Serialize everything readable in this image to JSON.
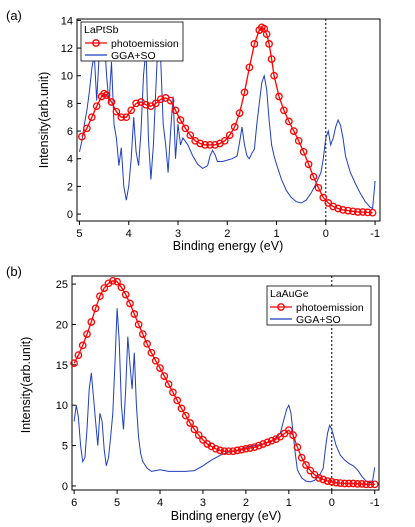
{
  "chart_data": [
    {
      "panel_label": "(a)",
      "type": "line",
      "sample": "LaPtSb",
      "xlabel": "Binding energy (eV)",
      "ylabel": "Intensity(arb.unit)",
      "xlim": [
        5.05,
        -1.1
      ],
      "ylim": [
        -0.5,
        14.1
      ],
      "xticks": [
        5,
        4,
        3,
        2,
        1,
        0,
        -1
      ],
      "yticks": [
        0,
        2,
        4,
        6,
        8,
        10,
        12,
        14
      ],
      "fermi_line_x": 0,
      "legend_location": "top-left",
      "colors": {
        "photoemission": "#ff0000",
        "gga": "#1f3fbf"
      },
      "series": [
        {
          "name": "photoemission",
          "marker": "circle",
          "x": [
            4.95,
            4.85,
            4.75,
            4.65,
            4.55,
            4.5,
            4.45,
            4.35,
            4.25,
            4.15,
            4.05,
            3.95,
            3.85,
            3.75,
            3.65,
            3.55,
            3.45,
            3.35,
            3.25,
            3.15,
            3.05,
            2.95,
            2.85,
            2.75,
            2.65,
            2.55,
            2.45,
            2.35,
            2.25,
            2.15,
            2.05,
            1.95,
            1.85,
            1.75,
            1.65,
            1.55,
            1.45,
            1.35,
            1.3,
            1.25,
            1.2,
            1.15,
            1.1,
            1.05,
            0.95,
            0.85,
            0.75,
            0.65,
            0.55,
            0.45,
            0.35,
            0.25,
            0.15,
            0.05,
            -0.05,
            -0.15,
            -0.25,
            -0.35,
            -0.45,
            -0.55,
            -0.65,
            -0.75,
            -0.85,
            -0.95
          ],
          "y": [
            5.6,
            6.2,
            7.0,
            7.8,
            8.5,
            8.7,
            8.6,
            8.1,
            7.4,
            7.0,
            7.0,
            7.5,
            8.0,
            8.1,
            7.9,
            7.8,
            8.0,
            8.3,
            8.4,
            8.2,
            7.5,
            6.8,
            6.2,
            5.7,
            5.3,
            5.1,
            5.0,
            5.0,
            5.0,
            5.1,
            5.3,
            5.7,
            6.3,
            7.3,
            8.8,
            10.6,
            12.3,
            13.3,
            13.5,
            13.4,
            13.0,
            12.3,
            11.2,
            10.0,
            8.5,
            7.5,
            6.7,
            6.0,
            5.3,
            4.5,
            3.6,
            2.7,
            1.9,
            1.2,
            0.8,
            0.55,
            0.4,
            0.3,
            0.25,
            0.2,
            0.15,
            0.15,
            0.12,
            0.1
          ]
        },
        {
          "name": "GGA+SO",
          "marker": "none",
          "x": [
            5.0,
            4.95,
            4.9,
            4.85,
            4.8,
            4.75,
            4.7,
            4.65,
            4.6,
            4.55,
            4.5,
            4.45,
            4.4,
            4.35,
            4.3,
            4.25,
            4.2,
            4.15,
            4.1,
            4.05,
            4.0,
            3.95,
            3.9,
            3.85,
            3.8,
            3.75,
            3.7,
            3.65,
            3.6,
            3.55,
            3.5,
            3.45,
            3.4,
            3.35,
            3.3,
            3.25,
            3.2,
            3.15,
            3.1,
            3.05,
            3.0,
            2.95,
            2.9,
            2.8,
            2.7,
            2.6,
            2.5,
            2.4,
            2.35,
            2.3,
            2.25,
            2.2,
            2.1,
            2.0,
            1.9,
            1.8,
            1.75,
            1.7,
            1.65,
            1.6,
            1.55,
            1.5,
            1.45,
            1.4,
            1.35,
            1.3,
            1.25,
            1.2,
            1.15,
            1.1,
            1.05,
            1.0,
            0.9,
            0.8,
            0.7,
            0.6,
            0.5,
            0.4,
            0.3,
            0.2,
            0.1,
            0.05,
            0.0,
            -0.05,
            -0.1,
            -0.15,
            -0.2,
            -0.25,
            -0.3,
            -0.35,
            -0.4,
            -0.5,
            -0.6,
            -0.7,
            -0.8,
            -0.9,
            -0.95,
            -1.0
          ],
          "y": [
            4.5,
            5.3,
            6.5,
            7.5,
            8.8,
            10.5,
            11.6,
            8.2,
            11.5,
            12.4,
            13.0,
            10.0,
            8.0,
            11.0,
            6.5,
            5.5,
            3.5,
            4.8,
            2.0,
            1.0,
            2.0,
            4.0,
            7.0,
            4.5,
            3.5,
            6.0,
            10.0,
            12.0,
            5.5,
            2.5,
            5.0,
            9.0,
            13.0,
            11.0,
            6.5,
            5.0,
            3.0,
            6.0,
            8.5,
            4.0,
            6.5,
            5.0,
            5.5,
            5.0,
            4.2,
            3.6,
            3.3,
            3.5,
            4.2,
            4.6,
            4.3,
            3.8,
            3.8,
            3.9,
            4.0,
            4.2,
            5.2,
            6.3,
            5.0,
            4.2,
            4.0,
            4.4,
            4.7,
            6.5,
            8.0,
            9.5,
            10.0,
            9.0,
            6.8,
            5.0,
            4.2,
            3.6,
            2.5,
            1.7,
            1.2,
            0.9,
            0.8,
            1.0,
            1.5,
            2.2,
            3.0,
            4.0,
            5.5,
            6.0,
            5.0,
            5.5,
            6.3,
            6.8,
            6.4,
            5.5,
            4.2,
            3.0,
            2.2,
            1.5,
            0.9,
            0.5,
            0.4,
            2.4
          ]
        }
      ]
    },
    {
      "panel_label": "(b)",
      "type": "line",
      "sample": "LaAuGe",
      "xlabel": "Binding energy (eV)",
      "ylabel": "Intensity(arb.unit)",
      "xlim": [
        6.05,
        -1.1
      ],
      "ylim": [
        -0.5,
        26
      ],
      "xticks": [
        6,
        5,
        4,
        3,
        2,
        1,
        0,
        -1
      ],
      "yticks": [
        0,
        5,
        10,
        15,
        20,
        25
      ],
      "fermi_line_x": 0,
      "legend_location": "top-right",
      "colors": {
        "photoemission": "#ff0000",
        "gga": "#1f3fbf"
      },
      "series": [
        {
          "name": "photoemission",
          "marker": "circle",
          "x": [
            6.0,
            5.9,
            5.8,
            5.7,
            5.6,
            5.5,
            5.4,
            5.3,
            5.2,
            5.1,
            5.0,
            4.9,
            4.8,
            4.7,
            4.6,
            4.5,
            4.4,
            4.3,
            4.2,
            4.1,
            4.0,
            3.9,
            3.8,
            3.7,
            3.6,
            3.5,
            3.4,
            3.3,
            3.2,
            3.1,
            3.0,
            2.9,
            2.8,
            2.7,
            2.6,
            2.5,
            2.4,
            2.3,
            2.2,
            2.1,
            2.0,
            1.9,
            1.8,
            1.7,
            1.6,
            1.5,
            1.4,
            1.3,
            1.2,
            1.1,
            1.0,
            0.9,
            0.8,
            0.7,
            0.6,
            0.5,
            0.4,
            0.3,
            0.2,
            0.1,
            0.0,
            -0.1,
            -0.2,
            -0.3,
            -0.4,
            -0.5,
            -0.6,
            -0.7,
            -0.8,
            -0.9,
            -1.0
          ],
          "y": [
            15.2,
            16.2,
            17.4,
            18.8,
            20.3,
            22.0,
            23.5,
            24.5,
            25.1,
            25.4,
            25.3,
            24.6,
            23.7,
            22.6,
            21.3,
            20.0,
            18.8,
            17.6,
            16.5,
            15.5,
            14.6,
            13.6,
            12.6,
            11.6,
            10.6,
            9.6,
            8.7,
            7.8,
            7.0,
            6.3,
            5.7,
            5.2,
            4.9,
            4.6,
            4.4,
            4.3,
            4.3,
            4.3,
            4.4,
            4.5,
            4.6,
            4.7,
            4.8,
            5.0,
            5.2,
            5.4,
            5.6,
            5.8,
            6.1,
            6.5,
            6.9,
            6.3,
            4.8,
            3.5,
            2.6,
            1.9,
            1.4,
            1.0,
            0.8,
            0.6,
            0.5,
            0.4,
            0.35,
            0.3,
            0.3,
            0.3,
            0.25,
            0.25,
            0.2,
            0.2,
            0.2
          ]
        },
        {
          "name": "GGA+SO",
          "marker": "none",
          "x": [
            6.0,
            5.95,
            5.9,
            5.85,
            5.8,
            5.75,
            5.7,
            5.65,
            5.6,
            5.55,
            5.5,
            5.45,
            5.4,
            5.35,
            5.3,
            5.25,
            5.2,
            5.15,
            5.1,
            5.05,
            5.0,
            4.95,
            4.9,
            4.85,
            4.8,
            4.75,
            4.7,
            4.65,
            4.6,
            4.55,
            4.5,
            4.45,
            4.4,
            4.3,
            4.2,
            4.1,
            4.0,
            3.8,
            3.6,
            3.4,
            3.2,
            3.0,
            2.8,
            2.6,
            2.4,
            2.2,
            2.0,
            1.8,
            1.6,
            1.4,
            1.3,
            1.2,
            1.1,
            1.05,
            1.0,
            0.95,
            0.9,
            0.85,
            0.8,
            0.7,
            0.6,
            0.5,
            0.4,
            0.3,
            0.2,
            0.15,
            0.1,
            0.05,
            0.0,
            -0.1,
            -0.2,
            -0.3,
            -0.4,
            -0.5,
            -0.6,
            -0.7,
            -0.8,
            -0.9,
            -0.95,
            -1.0
          ],
          "y": [
            8.0,
            10.0,
            8.5,
            5.0,
            3.0,
            3.5,
            7.0,
            12.0,
            14.0,
            11.0,
            8.0,
            5.0,
            9.0,
            8.0,
            4.5,
            2.5,
            3.5,
            6.0,
            9.0,
            15.0,
            22.0,
            18.0,
            10.0,
            7.0,
            12.0,
            18.5,
            15.0,
            12.0,
            16.5,
            10.0,
            6.0,
            4.0,
            3.0,
            2.2,
            1.8,
            1.9,
            2.0,
            1.8,
            1.8,
            1.8,
            1.9,
            2.5,
            3.2,
            3.8,
            4.2,
            4.4,
            4.8,
            5.0,
            5.2,
            5.5,
            6.0,
            6.5,
            8.5,
            9.5,
            10.0,
            9.0,
            6.5,
            4.0,
            2.0,
            1.0,
            0.6,
            0.5,
            0.7,
            1.2,
            2.2,
            4.5,
            6.5,
            7.5,
            7.0,
            5.0,
            3.8,
            3.2,
            2.8,
            2.5,
            2.0,
            1.2,
            0.6,
            0.4,
            0.6,
            2.3
          ]
        }
      ]
    }
  ]
}
